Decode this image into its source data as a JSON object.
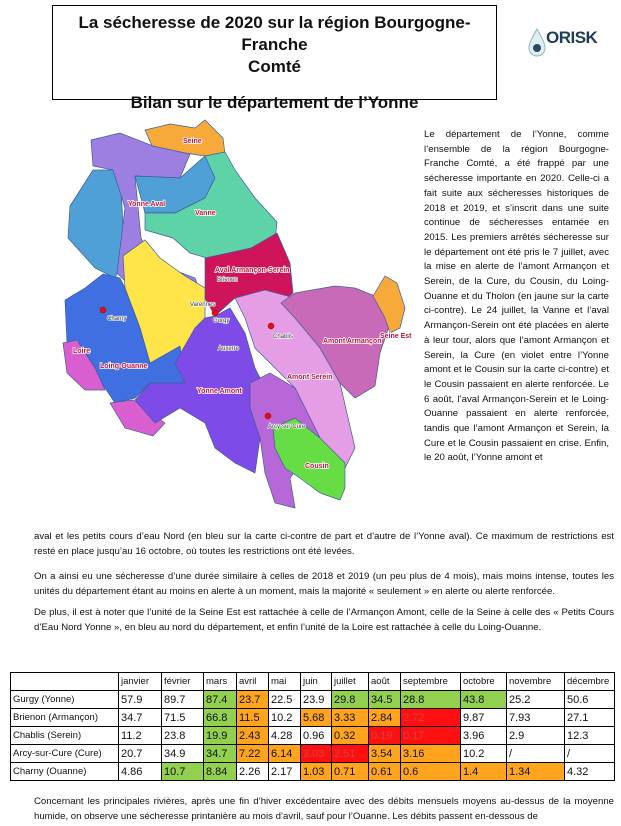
{
  "title": {
    "line1": "La sécheresse de 2020 sur la région Bourgogne-Franche",
    "line2": "Comté",
    "line3": "Bilan sur le département de l’Yonne"
  },
  "logo": {
    "name": "ORISK",
    "tagline": "Observatoire Régional et Territorial des Risques et de la Sécurité"
  },
  "map": {
    "labels": {
      "seine": "Seine",
      "yonne_aval": "Yonne Aval",
      "vanne": "Vanne",
      "aval_armancon_serein": "Aval Armançon-Serein",
      "loing_ouanne": "Loing-Ouanne",
      "loire": "Loire",
      "yonne_amont": "Yonne Amont",
      "amont_serein": "Amont Serein",
      "amont_armancon": "Amont Armançon",
      "seine_est": "Seine Est",
      "cousin": "Cousin"
    },
    "cities": {
      "brienon": "Brienon",
      "charny": "Charny",
      "varennes": "Varennes",
      "gurgy": "Gurgy",
      "auxerre": "Auxerre",
      "chablis": "Chablis",
      "arcy": "Arcy-sur-Cure"
    },
    "colors": {
      "seine": "#f7a93a",
      "purple": "#9c7fe0",
      "blue_nord": "#4fa0d6",
      "vanne": "#5fd3a8",
      "aval": "#d0145c",
      "tholon": "#ffe54a",
      "loing": "#3f6fe0",
      "loire": "#d95fd0",
      "yonne_amont": "#7f4be8",
      "amont_serein": "#e59de6",
      "amont_armancon": "#c86ab8",
      "cure": "#b867d8",
      "cousin": "#66dd44"
    }
  },
  "side_text": "Le département de l’Yonne, comme l’ensemble de la région Bourgogne-Franche Comté, a été frappé par une sécheresse importante en 2020. Celle-ci a fait suite aux sécheresses historiques de 2018 et 2019, et s’inscrit dans une suite continue de sécheresses entamée en 2015. Les premiers arrêtés sécheresse sur le département ont été pris le 7 juillet, avec la mise en alerte de l’amont Armançon et Serein, de la Cure, du Cousin, du Loing-Ouanne et du Tholon (en jaune sur la carte ci-contre). Le 24 juillet, la Vanne et l’aval Armançon-Serein ont été placées en alerte à leur tour, alors que l’amont Armançon et Serein, la Cure (en violet entre l’Yonne amont et le Cousin sur la carte ci-contre) et le Cousin passaient en alerte renforcée. Le 6 août, l’aval Armançon-Serein et le Loing-Ouanne passaient en alerte renforcée, tandis que l’amont Armançon et Serein, la Cure et le Cousin passaient en crise. Enfin, le 20 août, l’Yonne amont et",
  "paragraphs": [
    "aval et les petits cours d’eau Nord (en bleu sur la carte ci-contre de part et d’autre de l’Yonne aval). Ce maximum de restrictions est resté en place jusqu’au 16 octobre, où toutes les restrictions ont été levées.",
    "On a ainsi eu une sécheresse d’une durée similaire à celles de 2018 et 2019 (un peu plus de 4 mois), mais moins intense, toutes les unités du département étant au moins en alerte à un moment, mais la majorité « seulement » en alerte ou alerte renforcée.",
    "De plus, il est à noter que l’unité de la Seine Est est rattachée à celle de l’Armançon Amont, celle de la Seine à celle des « Petits Cours d’Eau Nord Yonne », en bleu au nord du département, et enfin l’unité de la Loire est rattachée à celle du Loing-Ouanne.",
    "Concernant les principales rivières, après une fin d’hiver excédentaire avec des débits mensuels moyens au-dessus de la moyenne humide, on observe une sécheresse printanière au mois d’avril, sauf pour l’Ouanne. Les débits passent en-dessous de"
  ],
  "table": {
    "headers": [
      "",
      "janvier",
      "février",
      "mars",
      "avril",
      "mai",
      "juin",
      "juillet",
      "août",
      "septembre",
      "octobre",
      "novembre",
      "décembre"
    ],
    "colors": {
      "g": "#92d050",
      "o": "#ffa41c",
      "r": "#ff1010"
    },
    "rows": [
      {
        "station": "Gurgy (Yonne)",
        "values": [
          "57.9",
          "89.7",
          "87.4",
          "23.7",
          "22.5",
          "23.9",
          "29.8",
          "34.5",
          "28.8",
          "43.8",
          "25.2",
          "50.6"
        ],
        "status": [
          "",
          "",
          "g",
          "o",
          "",
          "",
          "g",
          "g",
          "g",
          "g",
          "",
          ""
        ]
      },
      {
        "station": "Brienon (Armançon)",
        "values": [
          "34.7",
          "71.5",
          "66.8",
          "11.5",
          "10.2",
          "5.68",
          "3.33",
          "2.84",
          "2.72",
          "9.87",
          "7.93",
          "27.1"
        ],
        "status": [
          "",
          "",
          "g",
          "o",
          "",
          "o",
          "o",
          "o",
          "r",
          "",
          "",
          ""
        ]
      },
      {
        "station": "Chablis (Serein)",
        "values": [
          "11.2",
          "23.8",
          "19.9",
          "2.43",
          "4.28",
          "0.96",
          "0.32",
          "0.19",
          "0.17",
          "3.96",
          "2.9",
          "12.3"
        ],
        "status": [
          "",
          "",
          "g",
          "o",
          "",
          "",
          "o",
          "r",
          "r",
          "",
          "",
          ""
        ]
      },
      {
        "station": "Arcy-sur-Cure (Cure)",
        "values": [
          "20.7",
          "34.9",
          "34.7",
          "7.22",
          "6.14",
          "3.03",
          "2.51",
          "3.54",
          "3.16",
          "10.2",
          "/",
          "/"
        ],
        "status": [
          "",
          "",
          "g",
          "o",
          "o",
          "r",
          "r",
          "o",
          "o",
          "",
          "",
          ""
        ]
      },
      {
        "station": "Charny (Ouanne)",
        "values": [
          "4.86",
          "10.7",
          "8.84",
          "2.26",
          "2.17",
          "1.03",
          "0.71",
          "0.61",
          "0.6",
          "1.4",
          "1.34",
          "4.32"
        ],
        "status": [
          "",
          "g",
          "g",
          "",
          "",
          "o",
          "o",
          "o",
          "o",
          "o",
          "o",
          ""
        ]
      }
    ]
  }
}
